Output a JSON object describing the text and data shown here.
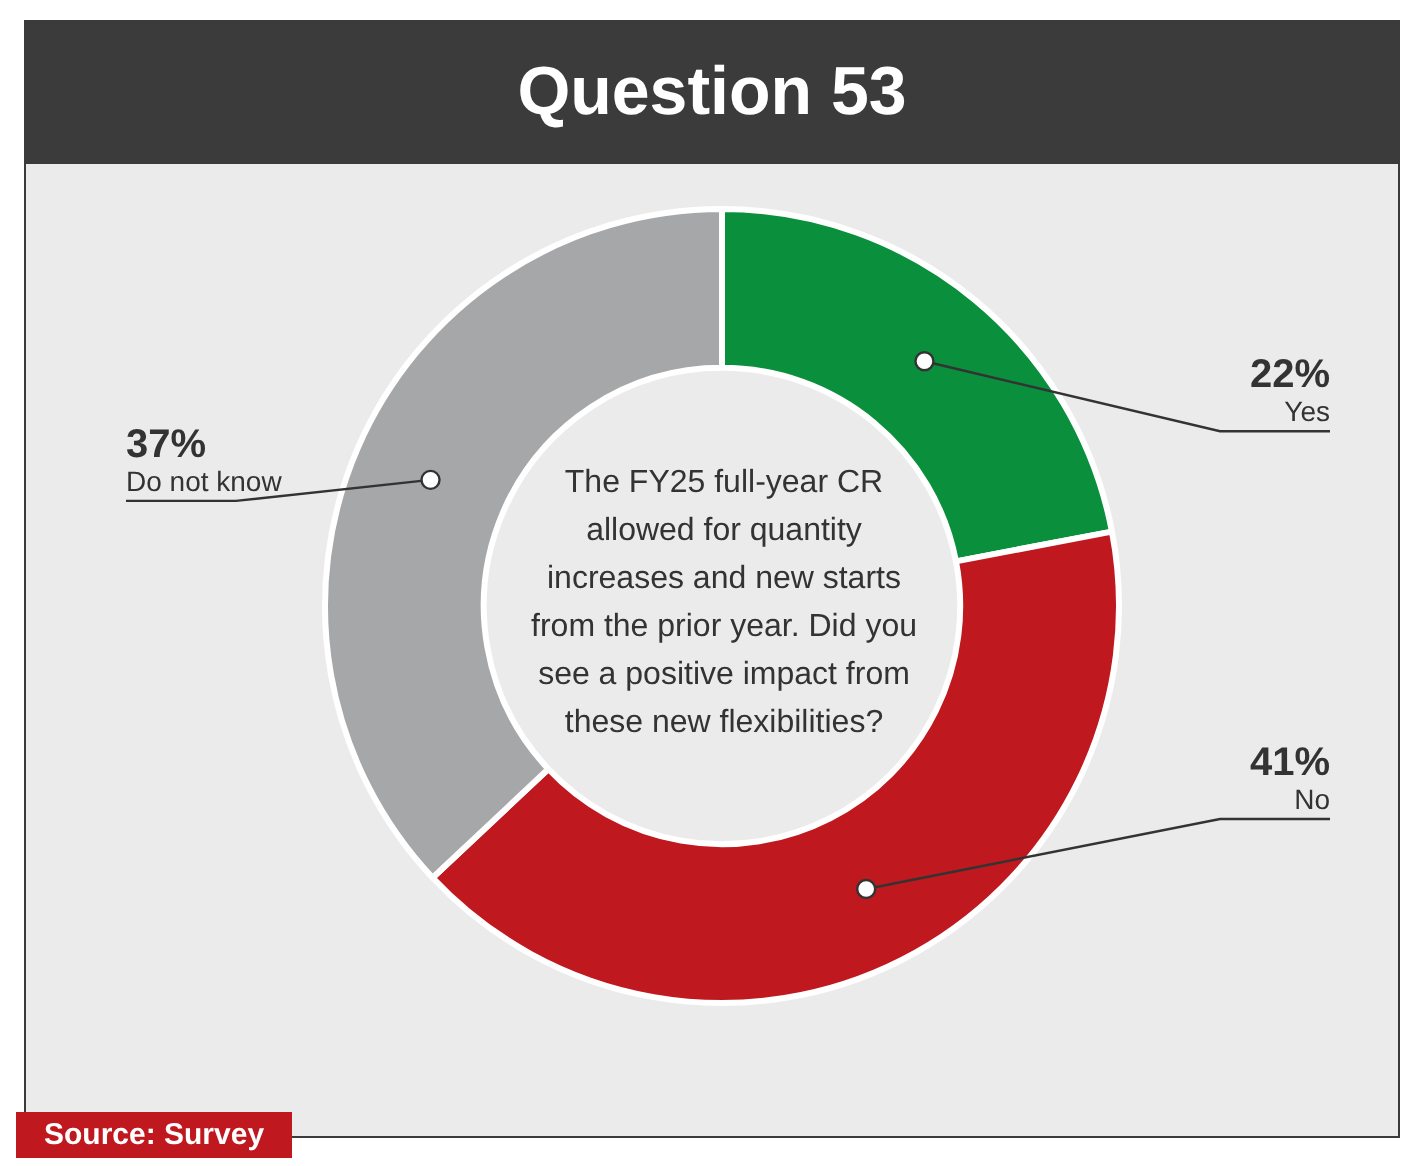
{
  "chart_data": {
    "type": "donut",
    "title": "Question 53",
    "categories": [
      "Yes",
      "No",
      "Do not know"
    ],
    "values": [
      22,
      41,
      37
    ],
    "colors": [
      "#0a8f3c",
      "#c0181f",
      "#a6a7a9"
    ],
    "value_labels": [
      "22%",
      "41%",
      "37%"
    ],
    "legend": false,
    "annotations": [
      "The FY25 full-year CR allowed for quantity increases and new starts from the prior year. Did you see a positive impact from these new flexibilities?",
      "Source: Survey"
    ]
  }
}
